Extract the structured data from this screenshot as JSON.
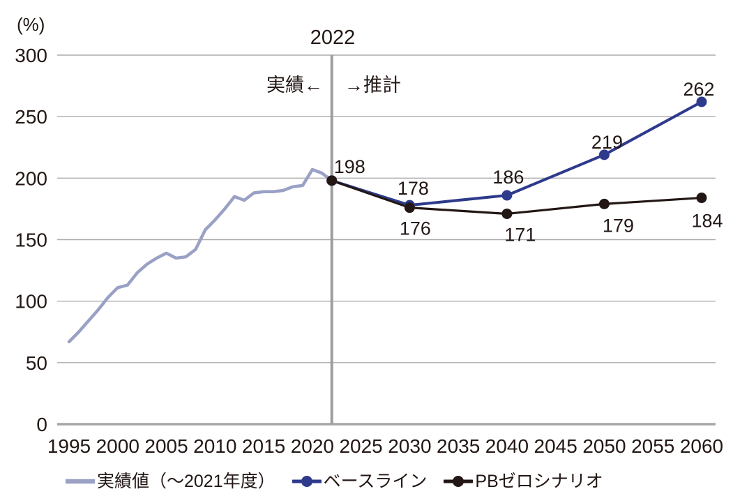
{
  "chart_data": {
    "type": "line",
    "unit_label": "(%)",
    "divider": {
      "year": 2022,
      "title": "2022",
      "left_label": "実績←",
      "right_label": "→推計"
    },
    "y_axis": {
      "min": 0,
      "max": 300,
      "ticks": [
        0,
        50,
        100,
        150,
        200,
        250,
        300
      ]
    },
    "x_axis": {
      "min": 1995,
      "max": 2060,
      "ticks": [
        1995,
        2000,
        2005,
        2010,
        2015,
        2020,
        2025,
        2030,
        2035,
        2040,
        2045,
        2050,
        2055,
        2060
      ]
    },
    "grid": "horizontal",
    "legend_position": "bottom",
    "series": [
      {
        "name": "実績値（～2021年度）",
        "color": "#9aa1c5",
        "line_width": 4.5,
        "marker": false,
        "x": [
          1995,
          1996,
          1997,
          1998,
          1999,
          2000,
          2001,
          2002,
          2003,
          2004,
          2005,
          2006,
          2007,
          2008,
          2009,
          2010,
          2011,
          2012,
          2013,
          2014,
          2015,
          2016,
          2017,
          2018,
          2019,
          2020,
          2021,
          2022
        ],
        "values": [
          67,
          75,
          84,
          93,
          103,
          111,
          113,
          123,
          130,
          135,
          139,
          135,
          136,
          142,
          158,
          166,
          175,
          185,
          182,
          188,
          189,
          189,
          190,
          193,
          194,
          207,
          204,
          198
        ]
      },
      {
        "name": "ベースライン",
        "color": "#2e3a8c",
        "line_width": 4,
        "marker": true,
        "x": [
          2022,
          2030,
          2040,
          2050,
          2060
        ],
        "values": [
          198,
          178,
          186,
          219,
          262
        ],
        "data_labels": [
          {
            "text": "198",
            "dx": 3,
            "dy": -11,
            "anchor": "start"
          },
          {
            "text": "178",
            "dx": 5,
            "dy": -15,
            "anchor": "middle"
          },
          {
            "text": "186",
            "dx": 2,
            "dy": -17,
            "anchor": "middle"
          },
          {
            "text": "219",
            "dx": 4,
            "dy": -9,
            "anchor": "middle"
          },
          {
            "text": "262",
            "dx": -4,
            "dy": -9,
            "anchor": "middle"
          }
        ]
      },
      {
        "name": "PBゼロシナリオ",
        "color": "#221714",
        "line_width": 3.2,
        "marker": true,
        "x": [
          2022,
          2030,
          2040,
          2050,
          2060
        ],
        "values": [
          198,
          176,
          171,
          179,
          184
        ],
        "data_labels": [
          null,
          {
            "text": "176",
            "dx": 8,
            "dy": 39,
            "anchor": "middle"
          },
          {
            "text": "171",
            "dx": 19,
            "dy": 39,
            "anchor": "middle"
          },
          {
            "text": "179",
            "dx": 20,
            "dy": 40,
            "anchor": "middle"
          },
          {
            "text": "184",
            "dx": 8,
            "dy": 42,
            "anchor": "middle"
          }
        ]
      }
    ],
    "style": {
      "gridline_color": "#ababab",
      "axis_color": "#a6a6a6",
      "divider_color": "#9e9e9e",
      "text_color": "#221714"
    }
  }
}
